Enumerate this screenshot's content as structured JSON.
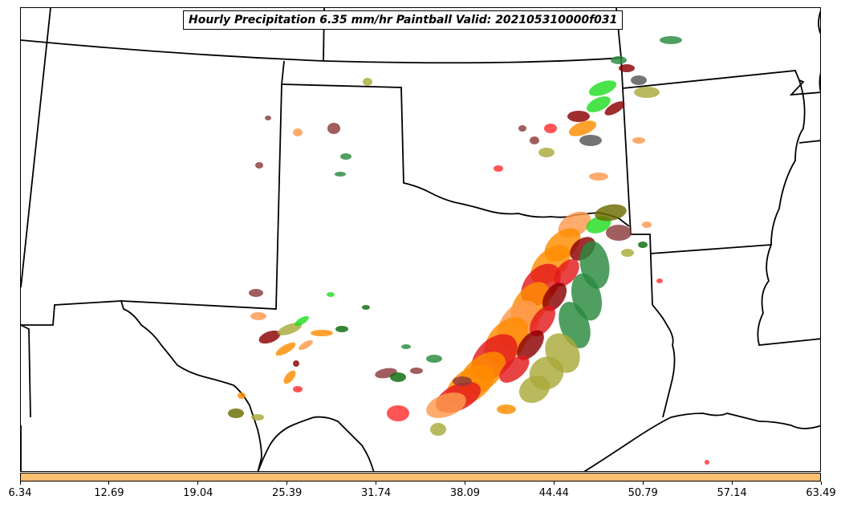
{
  "title": "Hourly Precipitation 6.35 mm/hr Paintball Valid: 202105310000f031",
  "colorbar": {
    "color": "#fdbf6f",
    "ticks": [
      "6.34",
      "12.69",
      "19.04",
      "25.39",
      "31.74",
      "38.09",
      "44.44",
      "50.79",
      "57.14",
      "63.49"
    ]
  },
  "palette": {
    "orange": "#ff8c00",
    "light_orange": "#fd9a4e",
    "red": "#e31a1c",
    "dark_red": "#8b0000",
    "maroon": "#8c3a3a",
    "olive": "#a9a93a",
    "dark_olive": "#6b6b00",
    "green": "#2a8a3e",
    "bright_green": "#22dd22",
    "dark_green": "#0b6b0b",
    "gray": "#555555",
    "pink_red": "#ff3030"
  }
}
